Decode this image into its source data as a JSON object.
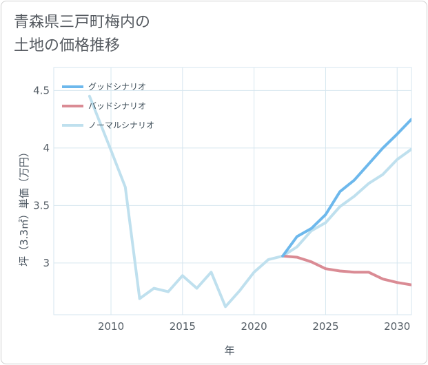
{
  "title_line1": "青森県三戸町梅内の",
  "title_line2": "土地の価格推移",
  "colors": {
    "good": "#6db8ec",
    "bad": "#da8b94",
    "normal": "#bfe0ee",
    "grid": "#d6e6ef"
  },
  "chart_data": {
    "type": "line",
    "xlabel": "年",
    "ylabel": "坪（3.3㎡）単価（万円）",
    "xlim": [
      2006,
      2031
    ],
    "ylim": [
      2.55,
      4.7
    ],
    "x_ticks": [
      2010,
      2015,
      2020,
      2025,
      2030
    ],
    "y_ticks": [
      3,
      3.5,
      4,
      4.5
    ],
    "x_tick_labels": [
      "2010",
      "2015",
      "2020",
      "2025",
      "2030"
    ],
    "y_tick_labels": [
      "3",
      "3.5",
      "4",
      "4.5"
    ],
    "legend_position": "top-left",
    "series": [
      {
        "name": "グッドシナリオ",
        "color": "#6db8ec",
        "x": [
          2022,
          2023,
          2024,
          2025,
          2026,
          2027,
          2028,
          2029,
          2030,
          2031
        ],
        "y": [
          3.06,
          3.23,
          3.3,
          3.42,
          3.62,
          3.72,
          3.86,
          4.0,
          4.12,
          4.25
        ]
      },
      {
        "name": "バッドシナリオ",
        "color": "#da8b94",
        "x": [
          2022,
          2023,
          2024,
          2025,
          2026,
          2027,
          2028,
          2029,
          2030,
          2031
        ],
        "y": [
          3.06,
          3.05,
          3.01,
          2.95,
          2.93,
          2.92,
          2.92,
          2.86,
          2.83,
          2.81
        ]
      },
      {
        "name": "ノーマルシナリオ",
        "color": "#bfe0ee",
        "x": [
          2008.5,
          2010,
          2011,
          2012,
          2013,
          2014,
          2015,
          2016,
          2017,
          2018,
          2019,
          2020,
          2021,
          2022,
          2023,
          2024,
          2025,
          2026,
          2027,
          2028,
          2029,
          2030,
          2031
        ],
        "y": [
          4.45,
          3.98,
          3.66,
          2.69,
          2.78,
          2.75,
          2.89,
          2.78,
          2.92,
          2.62,
          2.76,
          2.92,
          3.03,
          3.06,
          3.14,
          3.28,
          3.35,
          3.49,
          3.58,
          3.69,
          3.77,
          3.9,
          3.99
        ]
      }
    ]
  }
}
